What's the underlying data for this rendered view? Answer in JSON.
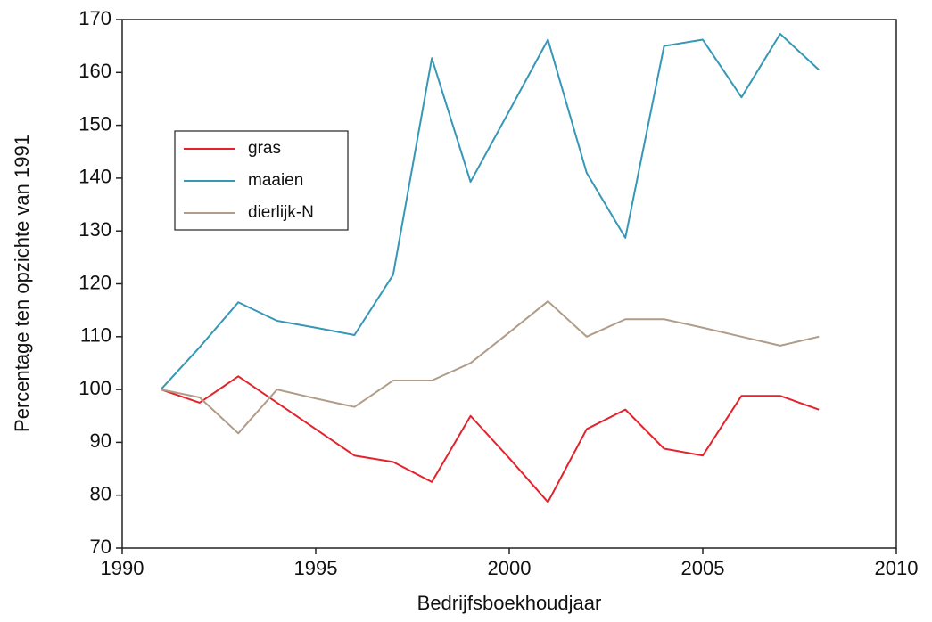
{
  "chart_data": {
    "type": "line",
    "xlabel": "Bedrijfsboekhoudjaar",
    "ylabel": "Percentage ten opzichte van 1991",
    "x": [
      1991,
      1992,
      1993,
      1994,
      1995,
      1996,
      1997,
      1998,
      1999,
      2000,
      2001,
      2002,
      2003,
      2004,
      2005,
      2006,
      2007,
      2008
    ],
    "series": [
      {
        "name": "gras",
        "color": "#e3232c",
        "values": [
          100,
          97.5,
          102.5,
          97.5,
          92.5,
          87.5,
          86.3,
          82.5,
          95,
          87,
          78.7,
          92.5,
          96.2,
          88.8,
          87.5,
          98.8,
          98.8,
          96.2
        ]
      },
      {
        "name": "maaien",
        "color": "#3797b6",
        "values": [
          100,
          108,
          116.5,
          113,
          111.7,
          110.3,
          121.7,
          162.7,
          139.3,
          152.7,
          166.2,
          141,
          128.7,
          165,
          166.2,
          155.3,
          167.3,
          160.5
        ]
      },
      {
        "name": "dierlijk-N",
        "color": "#b09c88",
        "values": [
          100,
          98.5,
          91.7,
          100,
          98.3,
          96.7,
          101.7,
          101.7,
          105,
          110.8,
          116.7,
          110,
          113.3,
          113.3,
          111.7,
          110,
          108.3,
          110
        ]
      }
    ],
    "xlim": [
      1990,
      2010
    ],
    "xticks": [
      1990,
      1995,
      2000,
      2005,
      2010
    ],
    "ylim": [
      70,
      170
    ],
    "yticks": [
      70,
      80,
      90,
      100,
      110,
      120,
      130,
      140,
      150,
      160,
      170
    ],
    "grid": false,
    "legend": "upper left"
  }
}
